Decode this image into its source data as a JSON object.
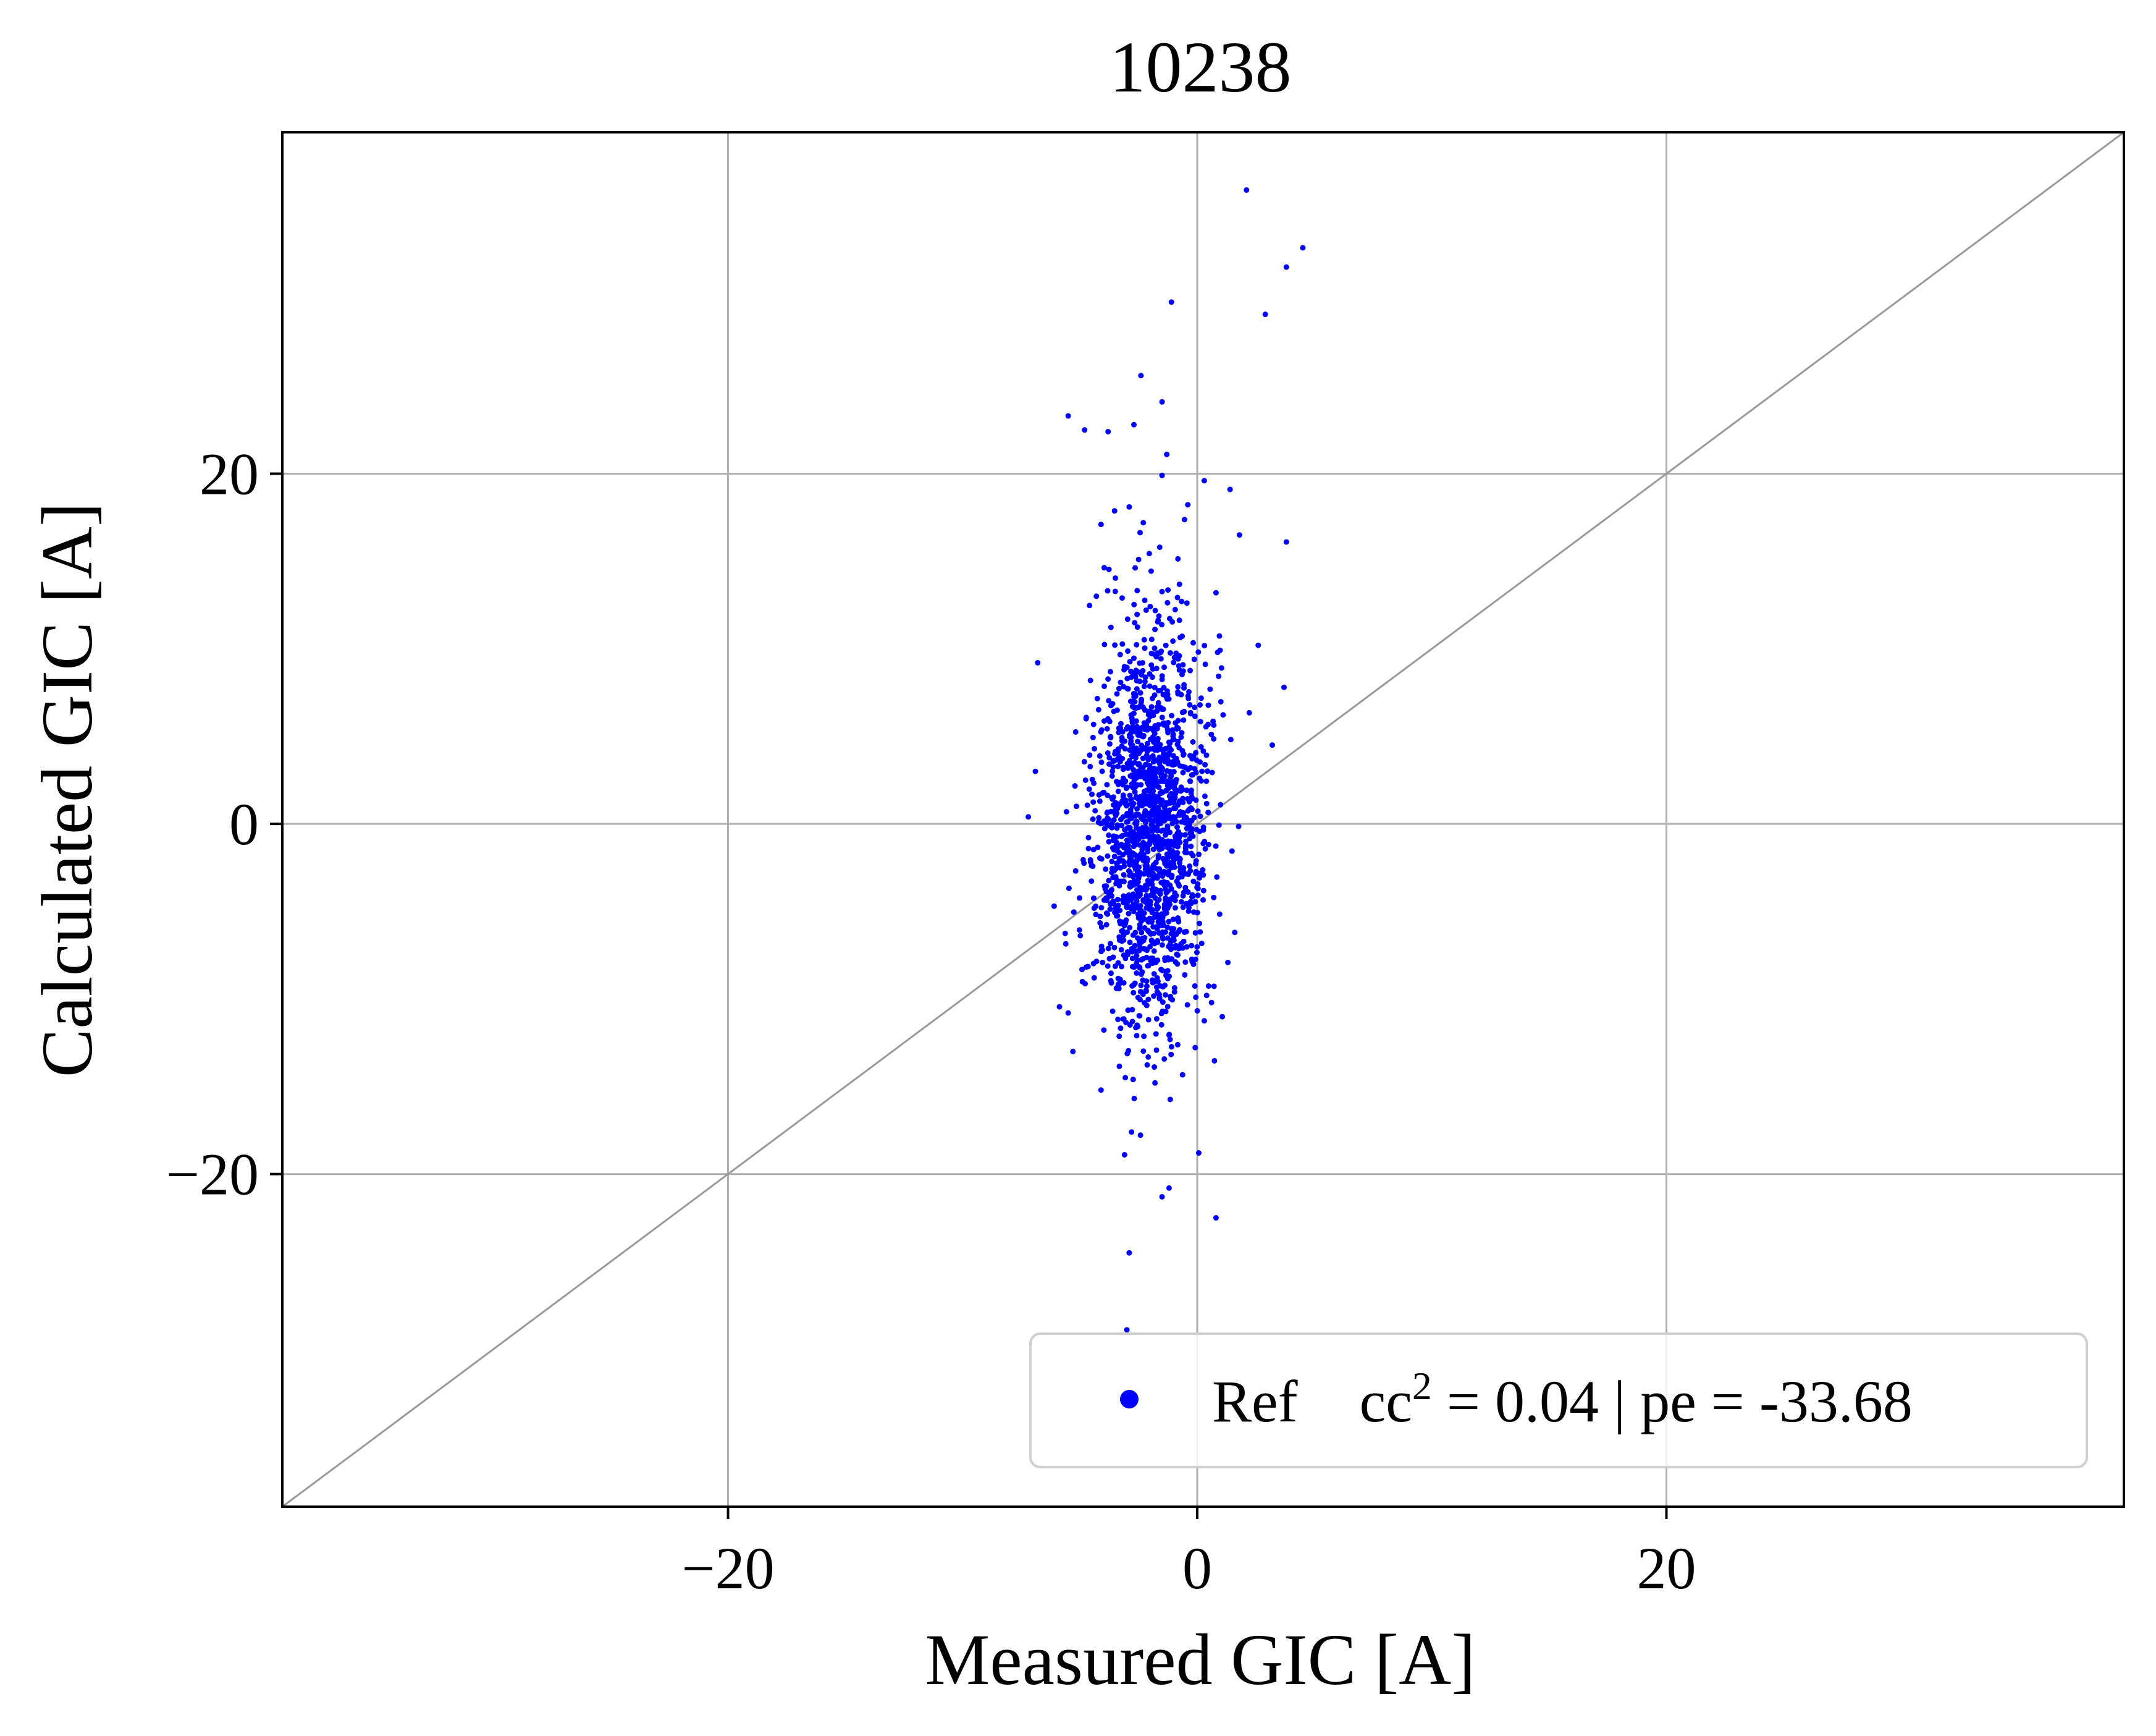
{
  "chart_data": {
    "type": "scatter",
    "title": "10238",
    "xlabel": "Measured GIC [A]",
    "ylabel": "Calculated GIC [A]",
    "xlim": [
      -39,
      39.5
    ],
    "ylim": [
      -39,
      39.5
    ],
    "xticks": [
      {
        "value": -20,
        "label": "−20"
      },
      {
        "value": 0,
        "label": "0"
      },
      {
        "value": 20,
        "label": "20"
      }
    ],
    "yticks": [
      {
        "value": -20,
        "label": "−20"
      },
      {
        "value": 0,
        "label": "0"
      },
      {
        "value": 20,
        "label": "20"
      }
    ],
    "grid": true,
    "reference_line": {
      "from": [
        -39,
        -39
      ],
      "to": [
        39.5,
        39.5
      ],
      "color": "#999999"
    },
    "legend": {
      "placement": "lower-right",
      "label_name": "Ref",
      "label_stat_prefix": "cc",
      "label_stat_sup": "2",
      "label_stat_rest": " = 0.04 | pe = -33.68"
    },
    "series": [
      {
        "name": "Ref",
        "color": "#0000ff",
        "highlight_points": [
          [
            2.1,
            36.2
          ],
          [
            4.5,
            32.9
          ],
          [
            3.8,
            31.8
          ],
          [
            -1.1,
            29.8
          ],
          [
            2.9,
            29.1
          ],
          [
            -2.4,
            25.6
          ],
          [
            -1.5,
            24.1
          ],
          [
            -5.5,
            23.3
          ],
          [
            -2.7,
            22.8
          ],
          [
            -4.8,
            22.5
          ],
          [
            -3.8,
            22.4
          ],
          [
            -1.3,
            21.1
          ],
          [
            0.3,
            19.6
          ],
          [
            1.4,
            19.1
          ],
          [
            -1.5,
            19.9
          ],
          [
            -2.9,
            18.1
          ],
          [
            -2.3,
            17.2
          ],
          [
            -4.1,
            17.1
          ],
          [
            1.8,
            16.5
          ],
          [
            3.8,
            16.1
          ],
          [
            -1.6,
            15.8
          ],
          [
            -2.5,
            15.1
          ],
          [
            0.8,
            13.2
          ],
          [
            -4.3,
            13.0
          ],
          [
            -3.2,
            12.9
          ],
          [
            -6.8,
            9.2
          ],
          [
            2.6,
            10.2
          ],
          [
            3.7,
            7.8
          ],
          [
            3.2,
            4.5
          ],
          [
            -7.2,
            0.4
          ],
          [
            -6.9,
            3.0
          ],
          [
            -6.1,
            -4.7
          ],
          [
            -5.5,
            -10.8
          ],
          [
            -5.3,
            -13.0
          ],
          [
            -4.1,
            -15.2
          ],
          [
            -3.1,
            -18.9
          ],
          [
            -2.8,
            -17.6
          ],
          [
            -1.5,
            -21.3
          ],
          [
            -1.2,
            -20.8
          ],
          [
            0.8,
            -22.5
          ],
          [
            -2.9,
            -24.5
          ],
          [
            -3.0,
            -28.9
          ],
          [
            1.6,
            -6.2
          ],
          [
            0.4,
            -9.8
          ]
        ],
        "cluster": {
          "center": [
            -2.0,
            -0.5
          ],
          "sd": [
            1.2,
            5.5
          ],
          "count": 1700
        }
      }
    ]
  }
}
